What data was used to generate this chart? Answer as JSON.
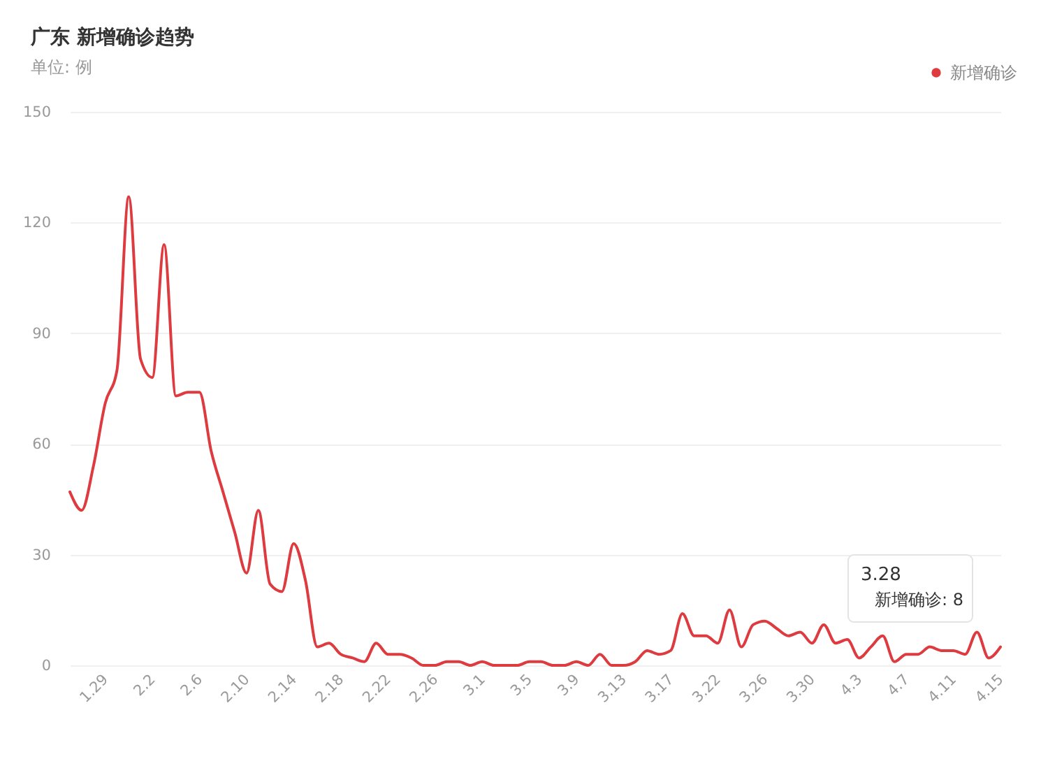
{
  "chart_data": {
    "type": "line",
    "title": "广东 新增确诊趋势",
    "subtitle": "单位: 例",
    "categories": [
      null,
      null,
      null,
      "1.29",
      null,
      null,
      null,
      "2.2",
      null,
      null,
      null,
      "2.6",
      null,
      null,
      null,
      "2.10",
      null,
      null,
      null,
      "2.14",
      null,
      null,
      null,
      "2.18",
      null,
      null,
      null,
      "2.22",
      null,
      null,
      null,
      "2.26",
      null,
      null,
      null,
      "3.1",
      null,
      null,
      null,
      "3.5",
      null,
      null,
      null,
      "3.9",
      null,
      null,
      null,
      "3.13",
      null,
      null,
      null,
      "3.17",
      null,
      null,
      null,
      "3.22",
      null,
      null,
      null,
      "3.26",
      null,
      null,
      null,
      "3.30",
      null,
      null,
      null,
      "4.3",
      null,
      null,
      null,
      "4.7",
      null,
      null,
      null,
      "4.11",
      null,
      null,
      null,
      "4.15"
    ],
    "series": [
      {
        "name": "新增确诊",
        "color": "#dd3b3f",
        "values": [
          47,
          42,
          54,
          71,
          80,
          127,
          83,
          78,
          114,
          73,
          74,
          74,
          58,
          47,
          36,
          25,
          42,
          22,
          20,
          33,
          23,
          5,
          6,
          3,
          2,
          1,
          6,
          3,
          3,
          2,
          0,
          0,
          1,
          1,
          0,
          1,
          0,
          0,
          0,
          1,
          1,
          0,
          0,
          1,
          0,
          3,
          0,
          0,
          1,
          4,
          3,
          4,
          14,
          8,
          8,
          6,
          15,
          5,
          11,
          12,
          10,
          8,
          9,
          6,
          11,
          6,
          7,
          2,
          5,
          8,
          1,
          3,
          3,
          5,
          4,
          4,
          3,
          9,
          2,
          5
        ]
      }
    ],
    "ylim": [
      0,
      150
    ],
    "yticks": [
      0,
      30,
      60,
      90,
      120,
      150
    ],
    "grid": "y",
    "legend": "top right",
    "marker": "none",
    "line_style": "solid",
    "annotations": [
      "3.28",
      "新增确诊: 8"
    ]
  }
}
